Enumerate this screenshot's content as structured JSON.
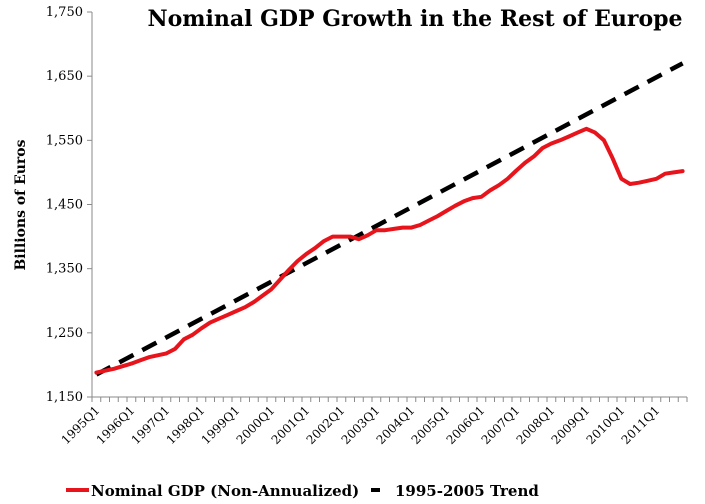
{
  "chart_data": {
    "type": "line",
    "title": "Nominal GDP Growth in the Rest of Europe",
    "xlabel": "",
    "ylabel": "Billions of Euros",
    "ylim": [
      1150,
      1750
    ],
    "yticks": [
      "1,150",
      "1,250",
      "1,350",
      "1,450",
      "1,550",
      "1,650",
      "1,750"
    ],
    "ytick_values": [
      1150,
      1250,
      1350,
      1450,
      1550,
      1650,
      1750
    ],
    "grid": false,
    "legend_position": "bottom",
    "x_start": "1995Q1",
    "n_quarters": 68,
    "xtick_labels": [
      "1995Q1",
      "1996Q1",
      "1997Q1",
      "1998Q1",
      "1999Q1",
      "2000Q1",
      "2001Q1",
      "2002Q1",
      "2003Q1",
      "2004Q1",
      "2005Q1",
      "2006Q1",
      "2007Q1",
      "2008Q1",
      "2009Q1",
      "2010Q1",
      "2011Q1"
    ],
    "series": [
      {
        "name": "Nominal GDP (Non-Annualized)",
        "color": "#e8141c",
        "style": "solid",
        "values": [
          1188,
          1191,
          1194,
          1198,
          1202,
          1207,
          1212,
          1215,
          1218,
          1225,
          1240,
          1247,
          1257,
          1266,
          1272,
          1278,
          1284,
          1290,
          1298,
          1308,
          1318,
          1333,
          1348,
          1362,
          1373,
          1382,
          1393,
          1400,
          1400,
          1400,
          1396,
          1402,
          1410,
          1410,
          1412,
          1414,
          1414,
          1418,
          1425,
          1432,
          1440,
          1448,
          1455,
          1460,
          1462,
          1472,
          1480,
          1490,
          1503,
          1515,
          1525,
          1538,
          1545,
          1550,
          1556,
          1562,
          1568,
          1562,
          1550,
          1522,
          1490,
          1482,
          1484,
          1487,
          1490,
          1498,
          1500,
          1502
        ]
      },
      {
        "name": "1995-2005 Trend",
        "color": "#000000",
        "style": "dashed",
        "start": 1185,
        "end": 1670
      }
    ]
  }
}
